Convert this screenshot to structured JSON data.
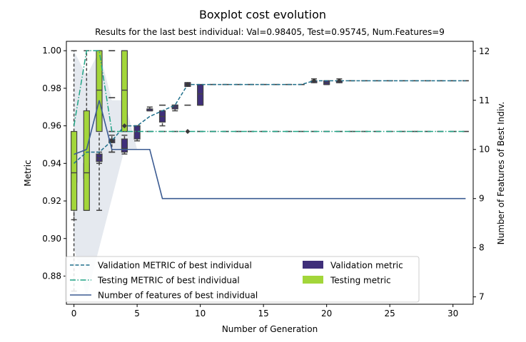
{
  "chart_data": {
    "type": "boxplot",
    "title": "Boxplot cost evolution",
    "subtitle": "Results for the last best individual: Val=0.98405, Test=0.95745, Num.Features=9",
    "xlabel": "Number of Generation",
    "ylabel": "Metric",
    "y2label": "Number of Features of Best Indiv.",
    "xlim": [
      -0.6,
      31.6
    ],
    "ylim": [
      0.865,
      1.005
    ],
    "y2lim": [
      6.85,
      12.2
    ],
    "xticks": [
      0,
      5,
      10,
      15,
      20,
      25,
      30
    ],
    "yticks": [
      0.88,
      0.9,
      0.92,
      0.94,
      0.96,
      0.98,
      1.0
    ],
    "y2ticks": [
      7,
      8,
      9,
      10,
      11,
      12
    ],
    "grid": false,
    "legend_position": "lower-left",
    "legend": {
      "validation_line": "Validation METRIC of best individual",
      "testing_line": "Testing METRIC of best individual",
      "features_line": "Number of features of best individual",
      "validation_box": "Validation metric",
      "testing_box": "Testing metric"
    },
    "colors": {
      "validation_line": "#1f6f8b",
      "testing_line": "#20a486",
      "features_line": "#3b5b92",
      "validation_box": "#3f2f7a",
      "testing_box": "#a3d63a",
      "features_band": "#e5e9ef"
    },
    "validation_best": {
      "x": [
        0,
        1,
        2,
        3,
        4,
        5,
        6,
        7,
        8,
        9,
        10,
        11,
        12,
        13,
        14,
        15,
        16,
        17,
        18,
        19,
        20,
        21,
        22,
        23,
        24,
        25,
        26,
        27,
        28,
        29,
        30,
        31
      ],
      "y": [
        0.94,
        0.946,
        0.946,
        0.952,
        0.96,
        0.96,
        0.965,
        0.968,
        0.971,
        0.982,
        0.982,
        0.982,
        0.982,
        0.982,
        0.982,
        0.982,
        0.982,
        0.982,
        0.982,
        0.984,
        0.984,
        0.984,
        0.984,
        0.984,
        0.984,
        0.984,
        0.984,
        0.984,
        0.984,
        0.984,
        0.984,
        0.984
      ]
    },
    "testing_best": {
      "x": [
        0,
        1,
        2,
        3,
        4,
        5,
        6,
        7,
        8,
        9,
        10,
        11,
        12,
        13,
        14,
        15,
        16,
        17,
        18,
        19,
        20,
        21,
        22,
        23,
        24,
        25,
        26,
        27,
        28,
        29,
        30,
        31
      ],
      "y": [
        0.96,
        1.0,
        1.0,
        0.957,
        0.957,
        0.957,
        0.957,
        0.957,
        0.957,
        0.957,
        0.957,
        0.957,
        0.957,
        0.957,
        0.957,
        0.957,
        0.957,
        0.957,
        0.957,
        0.957,
        0.957,
        0.957,
        0.957,
        0.957,
        0.957,
        0.957,
        0.957,
        0.957,
        0.957,
        0.957,
        0.957,
        0.957
      ]
    },
    "num_features_best": {
      "x": [
        0,
        1,
        2,
        3,
        4,
        5,
        6,
        7,
        8,
        9,
        10,
        11,
        12,
        13,
        14,
        15,
        16,
        17,
        18,
        19,
        20,
        21,
        22,
        23,
        24,
        25,
        26,
        27,
        28,
        29,
        30,
        31
      ],
      "y": [
        9.9,
        10,
        11,
        10,
        10,
        10,
        10,
        9,
        9,
        9,
        9,
        9,
        9,
        9,
        9,
        9,
        9,
        9,
        9,
        9,
        9,
        9,
        9,
        9,
        9,
        9,
        9,
        9,
        9,
        9,
        9,
        9
      ]
    },
    "num_features_band": {
      "x": [
        0,
        1,
        2,
        3,
        4,
        5,
        6,
        7,
        8,
        9
      ],
      "lower": [
        8.0,
        7.0,
        8.0,
        9.0,
        10,
        10,
        10,
        10,
        10,
        9
      ],
      "upper": [
        12,
        11.5,
        12,
        11,
        11,
        10,
        10,
        10,
        10,
        9
      ]
    },
    "validation_boxes": [
      {
        "x": 0,
        "whislo": 0.91,
        "q1": 0.93,
        "med": 0.936,
        "q3": 0.941,
        "whishi": 0.945
      },
      {
        "x": 1,
        "whislo": 0.929,
        "q1": 0.932,
        "med": 0.935,
        "q3": 0.94,
        "whishi": 0.945
      },
      {
        "x": 2,
        "whislo": 0.94,
        "q1": 0.941,
        "med": 0.943,
        "q3": 0.945,
        "whishi": 0.946
      },
      {
        "x": 3,
        "whislo": 0.946,
        "q1": 0.951,
        "med": 0.952,
        "q3": 0.953,
        "whishi": 0.955
      },
      {
        "x": 4,
        "whislo": 0.945,
        "q1": 0.946,
        "med": 0.948,
        "q3": 0.953,
        "whishi": 0.955
      },
      {
        "x": 5,
        "whislo": 0.952,
        "q1": 0.953,
        "med": 0.957,
        "q3": 0.96,
        "whishi": 0.96
      },
      {
        "x": 6,
        "whislo": 0.968,
        "q1": 0.968,
        "med": 0.969,
        "q3": 0.969,
        "whishi": 0.97
      },
      {
        "x": 7,
        "whislo": 0.96,
        "q1": 0.962,
        "med": 0.965,
        "q3": 0.968,
        "whishi": 0.968
      },
      {
        "x": 8,
        "whislo": 0.968,
        "q1": 0.969,
        "med": 0.97,
        "q3": 0.971,
        "whishi": 0.971
      },
      {
        "x": 9,
        "whislo": 0.981,
        "q1": 0.981,
        "med": 0.982,
        "q3": 0.983,
        "whishi": 0.983
      },
      {
        "x": 10,
        "whislo": 0.971,
        "q1": 0.971,
        "med": 0.977,
        "q3": 0.982,
        "whishi": 0.982
      },
      {
        "x": 19,
        "whislo": 0.983,
        "q1": 0.983,
        "med": 0.984,
        "q3": 0.984,
        "whishi": 0.985
      },
      {
        "x": 20,
        "whislo": 0.982,
        "q1": 0.982,
        "med": 0.983,
        "q3": 0.984,
        "whishi": 0.984
      },
      {
        "x": 21,
        "whislo": 0.983,
        "q1": 0.983,
        "med": 0.984,
        "q3": 0.984,
        "whishi": 0.985
      }
    ],
    "testing_boxes": [
      {
        "x": 0,
        "whislo": 0.872,
        "q1": 0.915,
        "med": 0.935,
        "q3": 0.957,
        "whishi": 1.0
      },
      {
        "x": 1,
        "whislo": 0.915,
        "q1": 0.915,
        "med": 0.935,
        "q3": 0.968,
        "whishi": 1.0
      },
      {
        "x": 2,
        "whislo": 0.915,
        "q1": 0.957,
        "med": 0.979,
        "q3": 1.0,
        "whishi": 1.0
      },
      {
        "x": 4,
        "whislo": 0.957,
        "q1": 0.957,
        "med": 0.979,
        "q3": 1.0,
        "whishi": 1.0
      }
    ],
    "dash_markers": [
      {
        "x": 3,
        "y": 0.946
      },
      {
        "x": 3,
        "y": 0.957
      },
      {
        "x": 3,
        "y": 0.975
      },
      {
        "x": 3,
        "y": 1.0
      },
      {
        "x": 4,
        "y": 0.96
      },
      {
        "x": 5,
        "y": 0.96
      },
      {
        "x": 6,
        "y": 0.957
      },
      {
        "x": 7,
        "y": 0.957
      },
      {
        "x": 8,
        "y": 0.957
      },
      {
        "x": 7,
        "y": 0.971
      },
      {
        "x": 8,
        "y": 0.971
      },
      {
        "x": 9,
        "y": 0.971
      },
      {
        "x": 11,
        "y": 0.982
      },
      {
        "x": 12,
        "y": 0.982
      },
      {
        "x": 13,
        "y": 0.982
      },
      {
        "x": 14,
        "y": 0.982
      },
      {
        "x": 15,
        "y": 0.982
      },
      {
        "x": 16,
        "y": 0.982
      },
      {
        "x": 17,
        "y": 0.982
      },
      {
        "x": 18,
        "y": 0.982
      },
      {
        "x": 22,
        "y": 0.984
      },
      {
        "x": 23,
        "y": 0.984
      },
      {
        "x": 24,
        "y": 0.984
      },
      {
        "x": 25,
        "y": 0.984
      },
      {
        "x": 26,
        "y": 0.984
      },
      {
        "x": 27,
        "y": 0.984
      },
      {
        "x": 28,
        "y": 0.984
      },
      {
        "x": 29,
        "y": 0.984
      },
      {
        "x": 30,
        "y": 0.984
      },
      {
        "x": 31,
        "y": 0.984
      },
      {
        "x": 10,
        "y": 0.957
      },
      {
        "x": 11,
        "y": 0.957
      },
      {
        "x": 12,
        "y": 0.957
      },
      {
        "x": 13,
        "y": 0.957
      },
      {
        "x": 14,
        "y": 0.957
      },
      {
        "x": 15,
        "y": 0.957
      },
      {
        "x": 16,
        "y": 0.957
      },
      {
        "x": 17,
        "y": 0.957
      },
      {
        "x": 18,
        "y": 0.957
      },
      {
        "x": 19,
        "y": 0.957
      },
      {
        "x": 20,
        "y": 0.957
      },
      {
        "x": 21,
        "y": 0.957
      },
      {
        "x": 22,
        "y": 0.957
      },
      {
        "x": 23,
        "y": 0.957
      },
      {
        "x": 24,
        "y": 0.957
      },
      {
        "x": 25,
        "y": 0.957
      },
      {
        "x": 26,
        "y": 0.957
      },
      {
        "x": 27,
        "y": 0.957
      },
      {
        "x": 28,
        "y": 0.957
      },
      {
        "x": 29,
        "y": 0.957
      },
      {
        "x": 30,
        "y": 0.957
      },
      {
        "x": 31,
        "y": 0.957
      }
    ],
    "outliers": [
      {
        "x": 3,
        "y": 0.952
      },
      {
        "x": 4,
        "y": 0.96
      },
      {
        "x": 9,
        "y": 0.957
      },
      {
        "x": 9,
        "y": 0.982
      },
      {
        "x": 19,
        "y": 0.984
      },
      {
        "x": 21,
        "y": 0.984
      }
    ]
  }
}
